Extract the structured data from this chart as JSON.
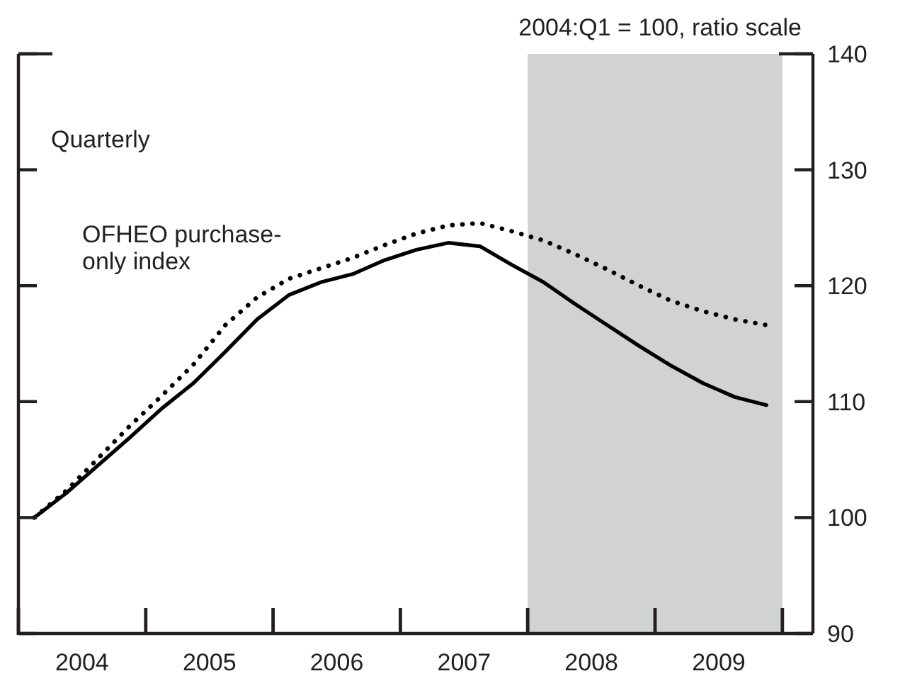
{
  "chart_data": {
    "type": "line",
    "title": "2004:Q1 = 100, ratio scale",
    "annotations": [
      "Quarterly"
    ],
    "x": [
      2004.125,
      2004.375,
      2004.625,
      2004.875,
      2005.125,
      2005.375,
      2005.625,
      2005.875,
      2006.125,
      2006.375,
      2006.625,
      2006.875,
      2007.125,
      2007.375,
      2007.625,
      2007.875,
      2008.125,
      2008.375,
      2008.625,
      2008.875,
      2009.125,
      2009.375,
      2009.625,
      2009.875
    ],
    "series": [
      {
        "color": "#000000",
        "line_style": "solid",
        "values": [
          100,
          102.1,
          104.5,
          106.9,
          109.4,
          111.6,
          114.3,
          117.1,
          119.2,
          120.3,
          121.0,
          122.2,
          123.1,
          123.7,
          123.4,
          121.8,
          120.3,
          118.4,
          116.6,
          114.8,
          113.1,
          111.6,
          110.4,
          109.7
        ]
      },
      {
        "name": "OFHEO purchase-only index",
        "color": "#000000",
        "line_style": "dotted",
        "values": [
          100,
          102.3,
          105.1,
          107.9,
          110.5,
          113.2,
          116.6,
          119.0,
          120.6,
          121.5,
          122.4,
          123.5,
          124.5,
          125.2,
          125.4,
          124.7,
          123.9,
          122.7,
          121.4,
          120.0,
          118.7,
          117.8,
          117.1,
          116.6
        ]
      }
    ],
    "xlim": [
      2004,
      2010.24
    ],
    "xticks": [
      {
        "value": 2004.5,
        "label": "2004"
      },
      {
        "value": 2005.5,
        "label": "2005"
      },
      {
        "value": 2006.5,
        "label": "2006"
      },
      {
        "value": 2007.5,
        "label": "2007"
      },
      {
        "value": 2008.5,
        "label": "2008"
      },
      {
        "value": 2009.5,
        "label": "2009"
      }
    ],
    "ylim": [
      90,
      140
    ],
    "yticks": [
      90,
      100,
      110,
      120,
      130,
      140
    ],
    "bands": [
      {
        "axis": "x",
        "from": 2008,
        "to": 2010,
        "color": "#d1d2d4"
      }
    ]
  }
}
